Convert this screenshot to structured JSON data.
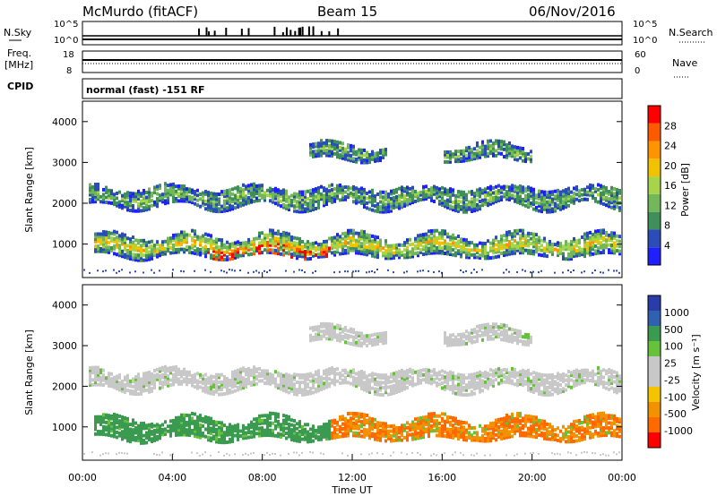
{
  "header": {
    "station": "McMurdo (fitACF)",
    "beam": "Beam 15",
    "date": "06/Nov/2016"
  },
  "status_panel": {
    "left_top": "N.Sky",
    "left_mid_1": "Freq.",
    "left_mid_2": "[MHz]",
    "left_bottom": "CPID",
    "right_top": "N.Search",
    "right_mid": "Nave",
    "scale_hi": "10^5",
    "scale_lo": "10^0",
    "freq_hi": "18",
    "freq_lo": "8",
    "nave_hi": "60",
    "nave_lo": "0",
    "cpid_text": "normal (fast) -151 RF"
  },
  "colors": {
    "power": [
      "#1f1fff",
      "#2b4db8",
      "#3e8f59",
      "#72b85a",
      "#a6d44a",
      "#f2c200",
      "#ff9400",
      "#ff5a00",
      "#ff0000"
    ],
    "velocity": [
      "#ff0000",
      "#ff6a00",
      "#f39200",
      "#f6c300",
      "#c8c8c8",
      "#c8c8c8",
      "#66c23a",
      "#3a9a50",
      "#3060b0",
      "#2a3ca8"
    ]
  },
  "chart_data": [
    {
      "type": "heatmap",
      "name": "power",
      "ylabel": "Slant Range [km]",
      "yticks": [
        "1000",
        "2000",
        "3000",
        "4000"
      ],
      "ylim": [
        180,
        4500
      ],
      "xlim": [
        0,
        24
      ],
      "colorbar_label": "Power [dB]",
      "colorbar_ticks": [
        "4",
        "8",
        "12",
        "16",
        "20",
        "24",
        "28"
      ],
      "bands": [
        {
          "center_km": 1000,
          "width_km": 280,
          "start_h": 0.5,
          "end_h": 24
        },
        {
          "center_km": 2200,
          "width_km": 260,
          "start_h": 0.2,
          "end_h": 24
        },
        {
          "center_km": 3300,
          "width_km": 200,
          "start_h": 10,
          "end_h": 20
        }
      ]
    },
    {
      "type": "heatmap",
      "name": "velocity",
      "ylabel": "Slant Range [km]",
      "yticks": [
        "1000",
        "2000",
        "3000",
        "4000"
      ],
      "ylim": [
        180,
        4500
      ],
      "xlim": [
        0,
        24
      ],
      "xlabel": "Time UT",
      "xticks": [
        "00:00",
        "04:00",
        "08:00",
        "12:00",
        "16:00",
        "20:00",
        "00:00"
      ],
      "colorbar_label": "Velocity [m s⁻¹]",
      "colorbar_ticks": [
        "1000",
        "500",
        "100",
        "25",
        "-25",
        "-100",
        "-500",
        "-1000"
      ]
    }
  ]
}
